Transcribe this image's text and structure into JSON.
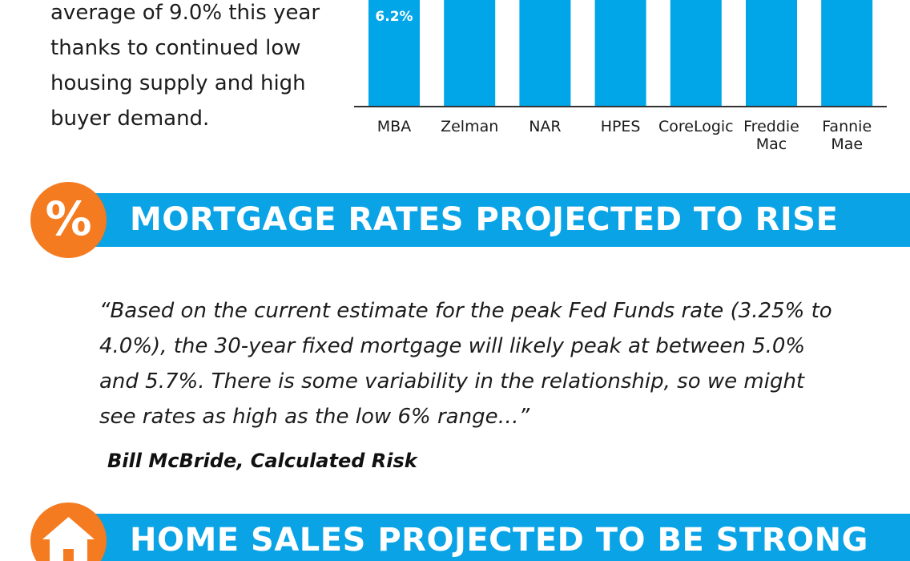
{
  "intro": {
    "text": "average of 9.0% this year thanks to continued low housing supply and high buyer demand."
  },
  "colors": {
    "bar": "#00a6e8",
    "band": "#0aa3e6",
    "badge": "#f47b20",
    "axis": "#333333"
  },
  "chart_data": {
    "type": "bar",
    "categories": [
      "MBA",
      "Zelman",
      "NAR",
      "HPES",
      "CoreLogic",
      "Freddie Mac",
      "Fannie Mae"
    ],
    "category_lines": [
      [
        "MBA"
      ],
      [
        "Zelman"
      ],
      [
        "NAR"
      ],
      [
        "HPES"
      ],
      [
        "CoreLogic"
      ],
      [
        "Freddie",
        "Mac"
      ],
      [
        "Fannie",
        "Mae"
      ]
    ],
    "values": [
      6.2,
      null,
      null,
      null,
      null,
      null,
      null
    ],
    "data_labels": [
      "6.2%",
      "",
      "",
      "",
      "",
      "",
      ""
    ],
    "title": "",
    "xlabel": "",
    "ylabel": "",
    "grid": false,
    "note": "Chart is cropped at the top; bar tops above the visible area are not shown."
  },
  "sections": [
    {
      "title": "MORTGAGE RATES PROJECTED TO RISE",
      "badge_glyph": "%",
      "badge_icon": "percent-icon"
    },
    {
      "title": "HOME SALES PROJECTED TO BE STRONG",
      "badge_icon": "house-icon"
    }
  ],
  "quote": {
    "text": "“Based on the current estimate for the peak Fed Funds rate (3.25% to 4.0%), the 30-year fixed mortgage will likely peak at between 5.0% and 5.7%. There is some variability in the relationship, so we might see rates as high as the low 6% range…”",
    "attribution": "Bill McBride, Calculated Risk"
  }
}
